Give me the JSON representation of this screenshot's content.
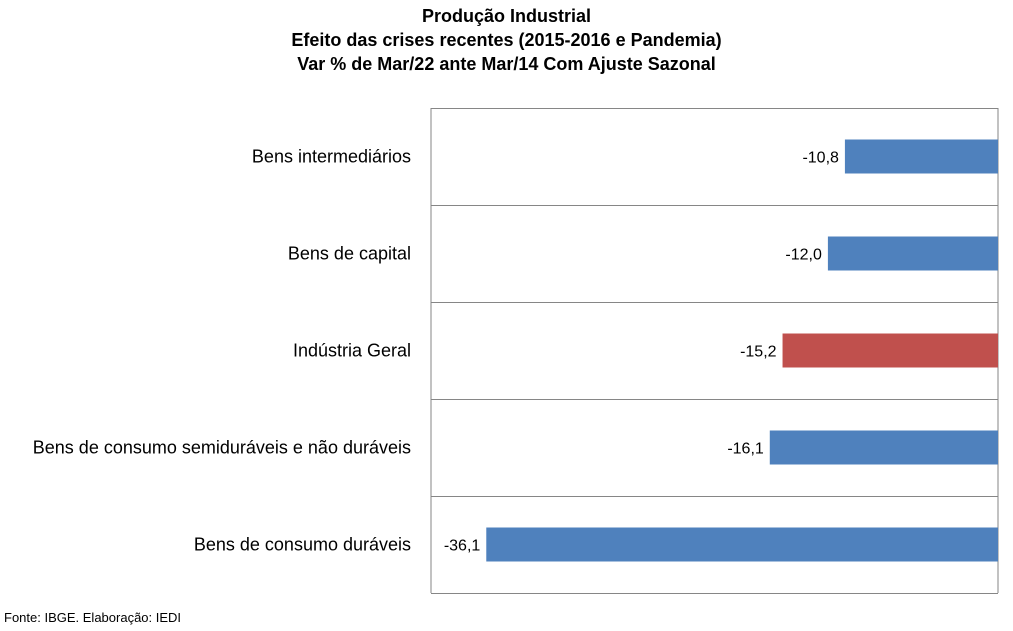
{
  "chart_data": {
    "type": "bar",
    "orientation": "horizontal",
    "title": "Produção Industrial",
    "subtitle": [
      "Efeito das crises recentes (2015-2016  e Pandemia)",
      "Var % de Mar/22 ante Mar/14 Com Ajuste Sazonal"
    ],
    "categories": [
      "Bens intermediários",
      "Bens de capital",
      "Indústria Geral",
      "Bens de consumo semiduráveis e não duráveis",
      "Bens de consumo duráveis"
    ],
    "values": [
      -10.8,
      -12.0,
      -15.2,
      -16.1,
      -36.1
    ],
    "value_labels": [
      "-10,8",
      "-12,0",
      "-15,2",
      "-16,1",
      "-36,1"
    ],
    "bar_colors": [
      "#4f81bd",
      "#4f81bd",
      "#c0504d",
      "#4f81bd",
      "#4f81bd"
    ],
    "xlim": [
      -40,
      0
    ],
    "grid": "horizontal separators between categories",
    "legend": "none",
    "source": "Fonte: IBGE. Elaboração: IEDI"
  }
}
